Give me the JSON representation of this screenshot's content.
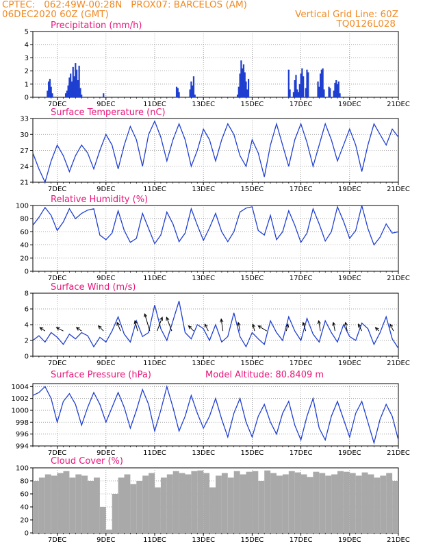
{
  "header": {
    "line1": "CPTEC:   062:49W-00:28N   PROX07: BARCELOS (AM)",
    "line2": "06DEC2020 60Z (GMT)",
    "grid_note": "Vertical Grid Line: 60Z",
    "code": "TQ0126L028"
  },
  "colors": {
    "header": "#f08a24",
    "title": "#e8157a",
    "series": "#1f3fd0",
    "cloud": "#a9a9a9"
  },
  "chart_data": [
    {
      "type": "bar",
      "title": "Precipitation (mm/h)",
      "x_ticks": [
        "7DEC",
        "9DEC",
        "11DEC",
        "13DEC",
        "15DEC",
        "17DEC",
        "19DEC",
        "21DEC"
      ],
      "ylim": [
        0,
        5
      ],
      "y_ticks": [
        0,
        1,
        2,
        3,
        4,
        5
      ],
      "grid": true,
      "x_days": [
        6.6,
        6.65,
        6.7,
        6.75,
        6.8,
        7.35,
        7.4,
        7.45,
        7.5,
        7.55,
        7.6,
        7.65,
        7.7,
        7.75,
        7.8,
        7.85,
        7.9,
        7.95,
        8.0,
        8.9,
        11.9,
        11.95,
        12.0,
        12.45,
        12.5,
        12.55,
        12.6,
        12.65,
        14.4,
        14.45,
        14.5,
        14.55,
        14.6,
        14.65,
        14.7,
        14.75,
        14.8,
        14.85,
        16.5,
        16.55,
        16.7,
        16.75,
        16.8,
        16.85,
        16.9,
        16.95,
        17.0,
        17.05,
        17.1,
        17.2,
        17.25,
        17.3,
        17.7,
        17.75,
        17.8,
        17.85,
        17.9,
        17.95,
        18.15,
        18.2,
        18.35,
        18.4,
        18.45,
        18.5,
        18.55,
        18.6
      ],
      "values": [
        0.5,
        1.2,
        1.4,
        0.8,
        0.3,
        0.3,
        0.5,
        0.9,
        1.5,
        1.8,
        1.2,
        2.3,
        1.6,
        2.6,
        2.1,
        1.3,
        2.4,
        0.7,
        0.2,
        0.3,
        0.8,
        0.7,
        0.4,
        0.6,
        1.2,
        0.9,
        1.6,
        0.2,
        0.2,
        0.8,
        1.8,
        2.8,
        2.2,
        2.5,
        1.9,
        1.2,
        0.6,
        1.4,
        2.1,
        0.6,
        0.4,
        1.3,
        1.7,
        0.6,
        0.4,
        1.0,
        1.8,
        2.2,
        1.6,
        0.7,
        2.1,
        1.9,
        1.2,
        0.8,
        1.8,
        2.1,
        2.2,
        0.6,
        0.8,
        0.7,
        0.5,
        1.1,
        1.3,
        1.0,
        1.2,
        0.3
      ]
    },
    {
      "type": "line",
      "title": "Surface Temperature (nC)",
      "x_ticks": [
        "7DEC",
        "9DEC",
        "11DEC",
        "13DEC",
        "15DEC",
        "17DEC",
        "19DEC",
        "21DEC"
      ],
      "ylim": [
        21,
        33
      ],
      "y_ticks": [
        21,
        24,
        27,
        30,
        33
      ],
      "grid": true,
      "x_days": [
        6.0,
        6.25,
        6.5,
        6.75,
        7.0,
        7.25,
        7.5,
        7.75,
        8.0,
        8.25,
        8.5,
        8.75,
        9.0,
        9.25,
        9.5,
        9.75,
        10.0,
        10.25,
        10.5,
        10.75,
        11.0,
        11.25,
        11.5,
        11.75,
        12.0,
        12.25,
        12.5,
        12.75,
        13.0,
        13.25,
        13.5,
        13.75,
        14.0,
        14.25,
        14.5,
        14.75,
        15.0,
        15.25,
        15.5,
        15.75,
        16.0,
        16.25,
        16.5,
        16.75,
        17.0,
        17.25,
        17.5,
        17.75,
        18.0,
        18.25,
        18.5,
        18.75,
        19.0,
        19.25,
        19.5,
        19.75,
        20.0,
        20.25,
        20.5,
        20.75,
        21.0
      ],
      "values": [
        26.5,
        23.5,
        21.0,
        25.0,
        28.0,
        26.0,
        23.0,
        26.0,
        28.0,
        26.5,
        23.5,
        27.0,
        30.0,
        28.0,
        23.5,
        28.0,
        31.5,
        29.0,
        24.0,
        30.0,
        32.5,
        29.5,
        25.0,
        29.0,
        32.0,
        29.0,
        24.0,
        27.0,
        31.0,
        29.0,
        25.0,
        29.0,
        32.0,
        30.0,
        26.0,
        24.0,
        29.0,
        26.5,
        22.0,
        28.0,
        32.0,
        28.0,
        24.0,
        29.0,
        32.0,
        28.5,
        24.0,
        28.0,
        32.0,
        29.0,
        25.0,
        28.0,
        31.0,
        28.0,
        23.0,
        28.0,
        32.0,
        30.0,
        28.0,
        31.0,
        29.5
      ]
    },
    {
      "type": "line",
      "title": "Relative Humidity (%)",
      "x_ticks": [
        "7DEC",
        "9DEC",
        "11DEC",
        "13DEC",
        "15DEC",
        "17DEC",
        "19DEC",
        "21DEC"
      ],
      "ylim": [
        0,
        100
      ],
      "y_ticks": [
        0,
        20,
        40,
        60,
        80,
        100
      ],
      "grid": true,
      "x_days": [
        6.0,
        6.25,
        6.5,
        6.75,
        7.0,
        7.25,
        7.5,
        7.75,
        8.0,
        8.25,
        8.5,
        8.75,
        9.0,
        9.25,
        9.5,
        9.75,
        10.0,
        10.25,
        10.5,
        10.75,
        11.0,
        11.25,
        11.5,
        11.75,
        12.0,
        12.25,
        12.5,
        12.75,
        13.0,
        13.25,
        13.5,
        13.75,
        14.0,
        14.25,
        14.5,
        14.75,
        15.0,
        15.25,
        15.5,
        15.75,
        16.0,
        16.25,
        16.5,
        16.75,
        17.0,
        17.25,
        17.5,
        17.75,
        18.0,
        18.25,
        18.5,
        18.75,
        19.0,
        19.25,
        19.5,
        19.75,
        20.0,
        20.25,
        20.5,
        20.75,
        21.0
      ],
      "values": [
        70,
        82,
        97,
        85,
        62,
        75,
        95,
        80,
        88,
        93,
        95,
        55,
        48,
        58,
        92,
        62,
        44,
        50,
        88,
        65,
        42,
        55,
        90,
        72,
        45,
        58,
        95,
        70,
        47,
        66,
        88,
        60,
        45,
        60,
        90,
        96,
        98,
        62,
        55,
        85,
        48,
        60,
        92,
        70,
        44,
        58,
        95,
        72,
        46,
        60,
        98,
        76,
        50,
        62,
        100,
        65,
        40,
        52,
        72,
        58,
        60
      ]
    },
    {
      "type": "line",
      "title": "Surface Wind (m/s)",
      "x_ticks": [
        "7DEC",
        "9DEC",
        "11DEC",
        "13DEC",
        "15DEC",
        "17DEC",
        "19DEC",
        "21DEC"
      ],
      "ylim": [
        0,
        8
      ],
      "y_ticks": [
        0,
        2,
        4,
        6,
        8
      ],
      "grid": true,
      "x_days": [
        6.0,
        6.25,
        6.5,
        6.75,
        7.0,
        7.25,
        7.5,
        7.75,
        8.0,
        8.25,
        8.5,
        8.75,
        9.0,
        9.25,
        9.5,
        9.75,
        10.0,
        10.25,
        10.5,
        10.75,
        11.0,
        11.25,
        11.5,
        11.75,
        12.0,
        12.25,
        12.5,
        12.75,
        13.0,
        13.25,
        13.5,
        13.75,
        14.0,
        14.25,
        14.5,
        14.75,
        15.0,
        15.25,
        15.5,
        15.75,
        16.0,
        16.25,
        16.5,
        16.75,
        17.0,
        17.25,
        17.5,
        17.75,
        18.0,
        18.25,
        18.5,
        18.75,
        19.0,
        19.25,
        19.5,
        19.75,
        20.0,
        20.25,
        20.5,
        20.75,
        21.0
      ],
      "values": [
        2.0,
        2.6,
        1.8,
        3.0,
        2.4,
        1.5,
        2.8,
        2.2,
        3.0,
        2.6,
        1.2,
        2.4,
        1.8,
        3.2,
        5.0,
        2.8,
        1.8,
        4.5,
        2.5,
        3.0,
        6.5,
        3.5,
        2.0,
        4.5,
        7.0,
        3.0,
        2.2,
        4.0,
        3.5,
        2.0,
        4.0,
        1.8,
        2.5,
        5.5,
        2.5,
        1.2,
        3.0,
        2.2,
        1.5,
        4.5,
        3.0,
        2.0,
        5.0,
        3.2,
        2.0,
        4.8,
        2.8,
        1.8,
        4.5,
        3.0,
        1.8,
        4.0,
        2.5,
        2.0,
        4.2,
        3.5,
        1.5,
        3.0,
        5.0,
        2.2,
        1.0
      ],
      "vectors": {
        "x_days": [
          6.5,
          7.25,
          8.0,
          8.9,
          9.6,
          10.3,
          10.8,
          11.1,
          11.7,
          12.6,
          13.2,
          13.8,
          14.5,
          15.1,
          15.6,
          16.4,
          17.2,
          17.8,
          18.4,
          18.9,
          19.5,
          20.2,
          20.8
        ],
        "u": [
          -1.5,
          -2.0,
          -1.5,
          -1.5,
          -1.0,
          -0.8,
          -1.5,
          1.5,
          -1.5,
          -1.5,
          -1.0,
          -0.5,
          -0.5,
          -0.5,
          -2.5,
          0.5,
          -0.8,
          -0.5,
          -0.5,
          -0.5,
          -1.0,
          -1.0,
          -1.0
        ],
        "v": [
          1.0,
          1.0,
          1.0,
          1.5,
          2.5,
          3.0,
          5.0,
          4.0,
          4.0,
          1.5,
          2.0,
          3.5,
          2.5,
          2.0,
          1.5,
          2.0,
          2.5,
          3.0,
          2.5,
          2.5,
          2.0,
          1.0,
          2.0
        ]
      }
    },
    {
      "type": "line",
      "title": "Surface Pressure (hPa)",
      "annotation": "Model Altitude: 80.8409 m",
      "x_ticks": [
        "7DEC",
        "9DEC",
        "11DEC",
        "13DEC",
        "15DEC",
        "17DEC",
        "19DEC",
        "21DEC"
      ],
      "ylim": [
        994,
        1004.5
      ],
      "y_ticks": [
        994,
        996,
        998,
        1000,
        1002,
        1004
      ],
      "grid": true,
      "x_days": [
        6.0,
        6.25,
        6.5,
        6.75,
        7.0,
        7.25,
        7.5,
        7.75,
        8.0,
        8.25,
        8.5,
        8.75,
        9.0,
        9.25,
        9.5,
        9.75,
        10.0,
        10.25,
        10.5,
        10.75,
        11.0,
        11.25,
        11.5,
        11.75,
        12.0,
        12.25,
        12.5,
        12.75,
        13.0,
        13.25,
        13.5,
        13.75,
        14.0,
        14.25,
        14.5,
        14.75,
        15.0,
        15.25,
        15.5,
        15.75,
        16.0,
        16.25,
        16.5,
        16.75,
        17.0,
        17.25,
        17.5,
        17.75,
        18.0,
        18.25,
        18.5,
        18.75,
        19.0,
        19.25,
        19.5,
        19.75,
        20.0,
        20.25,
        20.5,
        20.75,
        21.0
      ],
      "values": [
        1002.5,
        1003.0,
        1004.0,
        1002.0,
        998.0,
        1001.5,
        1002.8,
        1001.0,
        997.5,
        1000.5,
        1003.0,
        1001.0,
        998.0,
        1000.5,
        1003.0,
        1000.5,
        997.0,
        1000.0,
        1003.5,
        1001.0,
        996.5,
        1000.0,
        1004.0,
        1000.5,
        996.5,
        999.0,
        1002.5,
        999.5,
        997.0,
        999.0,
        1002.0,
        998.5,
        995.5,
        999.5,
        1002.0,
        998.0,
        995.5,
        999.0,
        1001.0,
        998.0,
        996.0,
        999.5,
        1001.5,
        997.5,
        995.0,
        999.0,
        1002.0,
        997.0,
        995.0,
        999.0,
        1001.5,
        998.5,
        995.5,
        999.5,
        1001.5,
        998.0,
        994.5,
        998.5,
        1001.0,
        999.0,
        995.0
      ]
    },
    {
      "type": "bar",
      "title": "Cloud Cover (%)",
      "x_ticks": [
        "7DEC",
        "9DEC",
        "11DEC",
        "13DEC",
        "15DEC",
        "17DEC",
        "19DEC",
        "21DEC"
      ],
      "ylim": [
        0,
        100
      ],
      "y_ticks": [
        0,
        20,
        40,
        60,
        80,
        100
      ],
      "grid": true,
      "x_days": [
        6.0,
        6.25,
        6.5,
        6.75,
        7.0,
        7.25,
        7.5,
        7.75,
        8.0,
        8.25,
        8.5,
        8.75,
        9.0,
        9.25,
        9.5,
        9.75,
        10.0,
        10.25,
        10.5,
        10.75,
        11.0,
        11.25,
        11.5,
        11.75,
        12.0,
        12.25,
        12.5,
        12.75,
        13.0,
        13.25,
        13.5,
        13.75,
        14.0,
        14.25,
        14.5,
        14.75,
        15.0,
        15.25,
        15.5,
        15.75,
        16.0,
        16.25,
        16.5,
        16.75,
        17.0,
        17.25,
        17.5,
        17.75,
        18.0,
        18.25,
        18.5,
        18.75,
        19.0,
        19.25,
        19.5,
        19.75,
        20.0,
        20.25,
        20.5,
        20.75,
        21.0
      ],
      "values": [
        80,
        85,
        90,
        88,
        92,
        95,
        85,
        90,
        88,
        80,
        85,
        40,
        5,
        60,
        85,
        90,
        75,
        80,
        88,
        92,
        70,
        85,
        90,
        95,
        92,
        90,
        95,
        96,
        92,
        70,
        88,
        92,
        85,
        95,
        90,
        94,
        95,
        80,
        96,
        92,
        88,
        90,
        95,
        93,
        90,
        86,
        94,
        92,
        88,
        90,
        95,
        94,
        92,
        88,
        93,
        90,
        85,
        88,
        92,
        80,
        85
      ]
    }
  ]
}
